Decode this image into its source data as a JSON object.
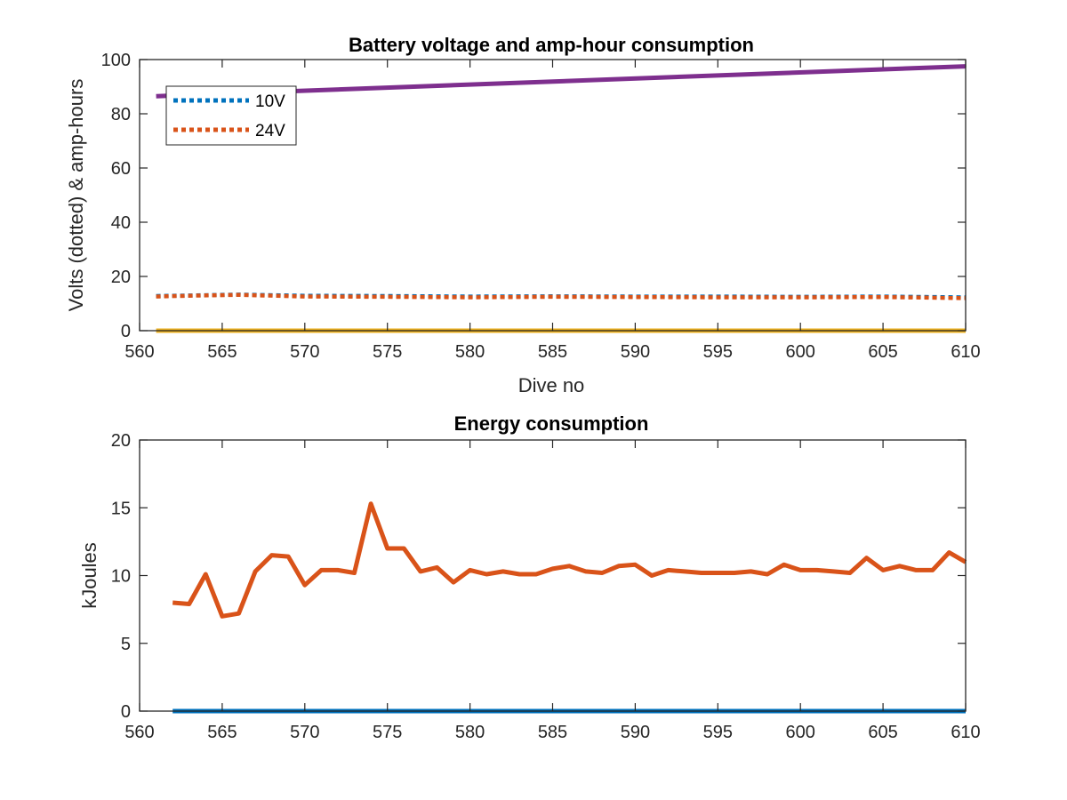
{
  "chart_data": [
    {
      "type": "line",
      "title": "Battery voltage and amp-hour consumption",
      "xlabel": "Dive no",
      "ylabel": "Volts (dotted) & amp-hours",
      "xlim": [
        560,
        610
      ],
      "ylim": [
        0,
        100
      ],
      "xticks": [
        "560",
        "565",
        "570",
        "575",
        "580",
        "585",
        "590",
        "595",
        "600",
        "605",
        "610"
      ],
      "yticks": [
        "0",
        "20",
        "40",
        "60",
        "80",
        "100"
      ],
      "legend": {
        "placement": "top-left"
      },
      "series": [
        {
          "name": "10V",
          "style": "dotted",
          "color": "#0072BD",
          "x": [
            561,
            563,
            566,
            570,
            575,
            580,
            585,
            590,
            595,
            600,
            605,
            610
          ],
          "y": [
            12.8,
            13.0,
            13.3,
            12.9,
            12.8,
            12.6,
            12.7,
            12.6,
            12.6,
            12.5,
            12.6,
            12.3
          ]
        },
        {
          "name": "24V",
          "style": "dotted",
          "color": "#D95319",
          "x": [
            561,
            563,
            566,
            570,
            575,
            580,
            585,
            590,
            595,
            600,
            605,
            610
          ],
          "y": [
            12.6,
            12.9,
            13.2,
            12.6,
            12.5,
            12.3,
            12.5,
            12.4,
            12.3,
            12.3,
            12.4,
            12.0
          ]
        },
        {
          "style": "solid",
          "color": "#EDB120",
          "x": [
            561,
            610
          ],
          "y": [
            0,
            0
          ]
        },
        {
          "style": "solid",
          "color": "#7E2F8E",
          "x": [
            561,
            610
          ],
          "y": [
            86.5,
            97.5
          ]
        }
      ]
    },
    {
      "type": "line",
      "title": "Energy consumption",
      "xlabel": "",
      "ylabel": "kJoules",
      "xlim": [
        560,
        610
      ],
      "ylim": [
        0,
        20
      ],
      "xticks": [
        "560",
        "565",
        "570",
        "575",
        "580",
        "585",
        "590",
        "595",
        "600",
        "605",
        "610"
      ],
      "yticks": [
        "0",
        "5",
        "10",
        "15",
        "20"
      ],
      "series": [
        {
          "style": "solid",
          "color": "#0072BD",
          "x": [
            562,
            610
          ],
          "y": [
            0,
            0
          ]
        },
        {
          "style": "solid",
          "color": "#D95319",
          "x": [
            562,
            563,
            564,
            565,
            566,
            567,
            568,
            569,
            570,
            571,
            572,
            573,
            574,
            575,
            576,
            577,
            578,
            579,
            580,
            581,
            582,
            583,
            584,
            585,
            586,
            587,
            588,
            589,
            590,
            591,
            592,
            593,
            594,
            595,
            596,
            597,
            598,
            599,
            600,
            601,
            602,
            603,
            604,
            605,
            606,
            607,
            608,
            609,
            610
          ],
          "y": [
            8.0,
            7.9,
            10.1,
            7.0,
            7.2,
            10.3,
            11.5,
            11.4,
            9.3,
            10.4,
            10.4,
            10.2,
            15.3,
            12.0,
            12.0,
            10.3,
            10.6,
            9.5,
            10.4,
            10.1,
            10.3,
            10.1,
            10.1,
            10.5,
            10.7,
            10.3,
            10.2,
            10.7,
            10.8,
            10.0,
            10.4,
            10.3,
            10.2,
            10.2,
            10.2,
            10.3,
            10.1,
            10.8,
            10.4,
            10.4,
            10.3,
            10.2,
            11.3,
            10.4,
            10.7,
            10.4,
            10.4,
            11.7,
            11.0
          ]
        }
      ]
    }
  ]
}
